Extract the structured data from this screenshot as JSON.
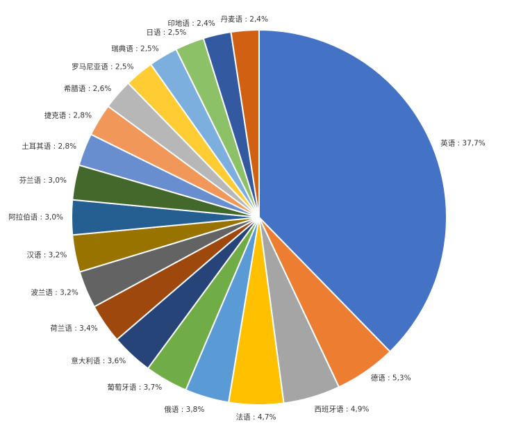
{
  "chart_data": {
    "type": "pie",
    "values": [
      37.7,
      5.3,
      4.9,
      4.7,
      3.8,
      3.7,
      3.6,
      3.4,
      3.2,
      3.2,
      3.0,
      3.0,
      2.8,
      2.8,
      2.6,
      2.5,
      2.5,
      2.5,
      2.4,
      2.4
    ],
    "value_labels": [
      "英语 : 37,7%",
      "德语 : 5,3%",
      "西班牙语 : 4,9%",
      "法语 : 4,7%",
      "俄语 : 3,8%",
      "葡萄牙语 : 3,7%",
      "意大利语 : 3,6%",
      "荷兰语 : 3,4%",
      "波兰语 : 3,2%",
      "汉语 : 3,2%",
      "阿拉伯语 : 3,0%",
      "芬兰语 : 3,0%",
      "土耳其语 : 2,8%",
      "捷克语 : 2,8%",
      "希腊语 : 2,6%",
      "罗马尼亚语 : 2,5%",
      "瑞典语 : 2,5%",
      "日语 : 2,5%",
      "印地语 : 2,4%",
      "丹麦语 : 2,4%"
    ],
    "colors": [
      "#4472c4",
      "#ed7d31",
      "#a5a5a5",
      "#ffc000",
      "#5b9bd5",
      "#70ad47",
      "#264478",
      "#9e480e",
      "#636363",
      "#997300",
      "#255e91",
      "#43682b",
      "#698ed0",
      "#f1975a",
      "#b7b7b7",
      "#ffcd33",
      "#7cafdd",
      "#8cc168",
      "#335aa1",
      "#d26012"
    ]
  }
}
